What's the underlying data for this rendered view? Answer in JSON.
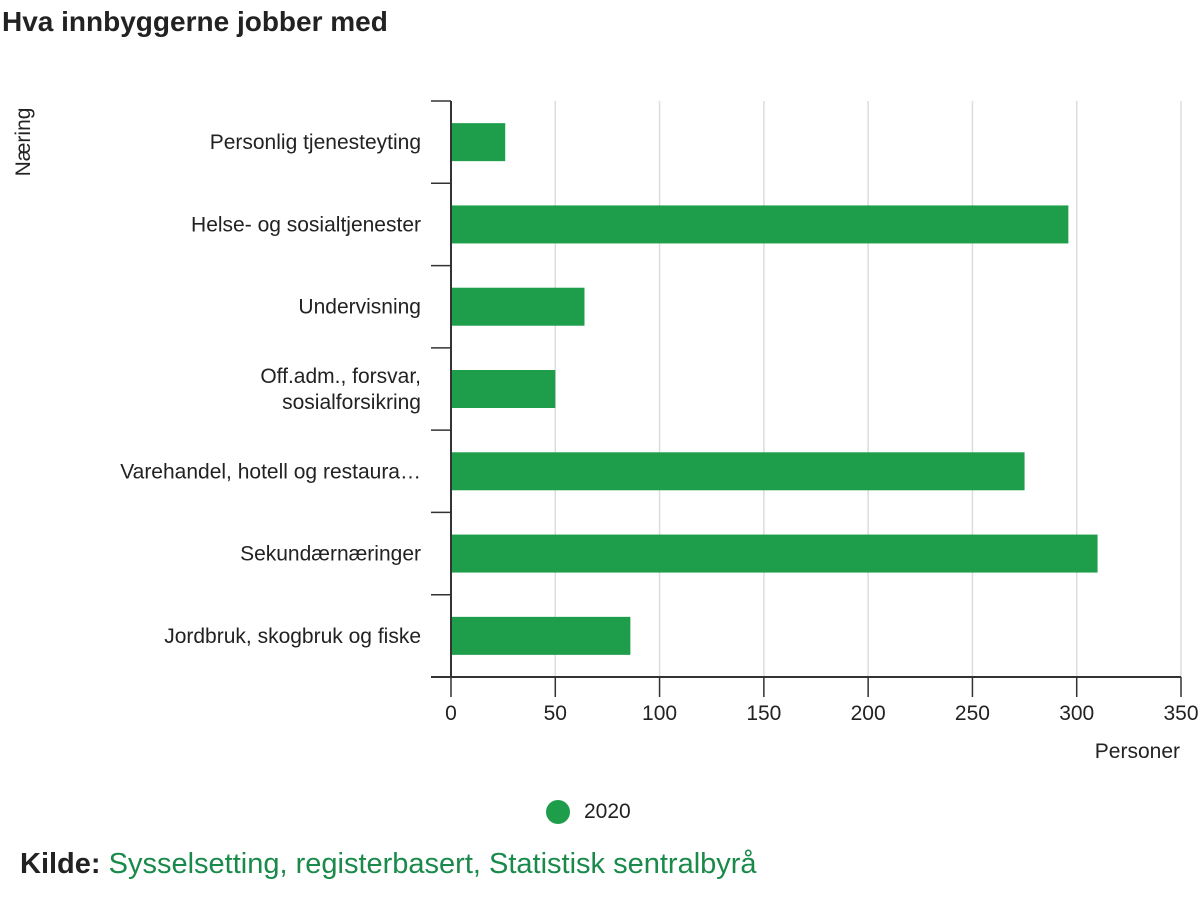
{
  "title": "Hva innbyggerne jobber med",
  "chart_data": {
    "type": "bar",
    "orientation": "horizontal",
    "title": "Hva innbyggerne jobber med",
    "xlabel": "Personer",
    "ylabel": "Næring",
    "categories": [
      [
        "Personlig tjenesteyting"
      ],
      [
        "Helse- og sosialtjenester"
      ],
      [
        "Undervisning"
      ],
      [
        "Off.adm., forsvar,",
        "sosialforsikring"
      ],
      [
        "Varehandel, hotell og restaura…"
      ],
      [
        "Sekundærnæringer"
      ],
      [
        "Jordbruk, skogbruk og fiske"
      ]
    ],
    "series": [
      {
        "name": "2020",
        "color": "#1e9e4a",
        "values": [
          26,
          296,
          64,
          50,
          275,
          310,
          86
        ]
      }
    ],
    "xlim": [
      0,
      350
    ],
    "xticks": [
      0,
      50,
      100,
      150,
      200,
      250,
      300,
      350
    ],
    "grid": true,
    "legend_position": "bottom"
  },
  "legend": {
    "label": "2020",
    "color": "#1e9e4a"
  },
  "source": {
    "label": "Kilde:",
    "link_text": "Sysselsetting, registerbasert, Statistisk sentralbyrå",
    "link_color": "#1a8a4a"
  }
}
